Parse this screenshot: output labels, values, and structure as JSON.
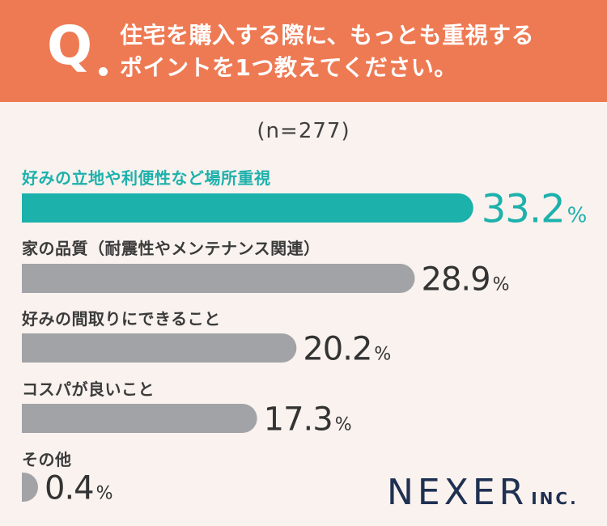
{
  "header": {
    "q_mark": "Q",
    "question_line1": "住宅を購入する際に、もっとも重視する",
    "question_line2": "ポイントを1つ教えてください。"
  },
  "sample": "(n=277)",
  "chart_data": {
    "type": "bar",
    "orientation": "horizontal",
    "title": "住宅を購入する際に、もっとも重視するポイントを1つ教えてください。",
    "note": "(n=277)",
    "unit": "%",
    "categories": [
      "好みの立地や利便性など場所重視",
      "家の品質（耐震性やメンテナンス関連）",
      "好みの間取りにできること",
      "コスパが良いこと",
      "その他"
    ],
    "values": [
      33.2,
      28.9,
      20.2,
      17.3,
      0.4
    ],
    "value_labels": [
      "33.2",
      "28.9",
      "20.2",
      "17.3",
      "0.4"
    ],
    "highlight_index": 0,
    "colors": {
      "highlight": "#1db1ac",
      "default": "#a2a3a7",
      "highlight_text": "#1db1ac",
      "default_text": "#333333"
    }
  },
  "logo": {
    "main": "NEXER",
    "sub": "INC."
  },
  "colors": {
    "header_bg": "#ee7a54",
    "page_bg": "#f9f2ee",
    "logo": "#1f3052"
  }
}
